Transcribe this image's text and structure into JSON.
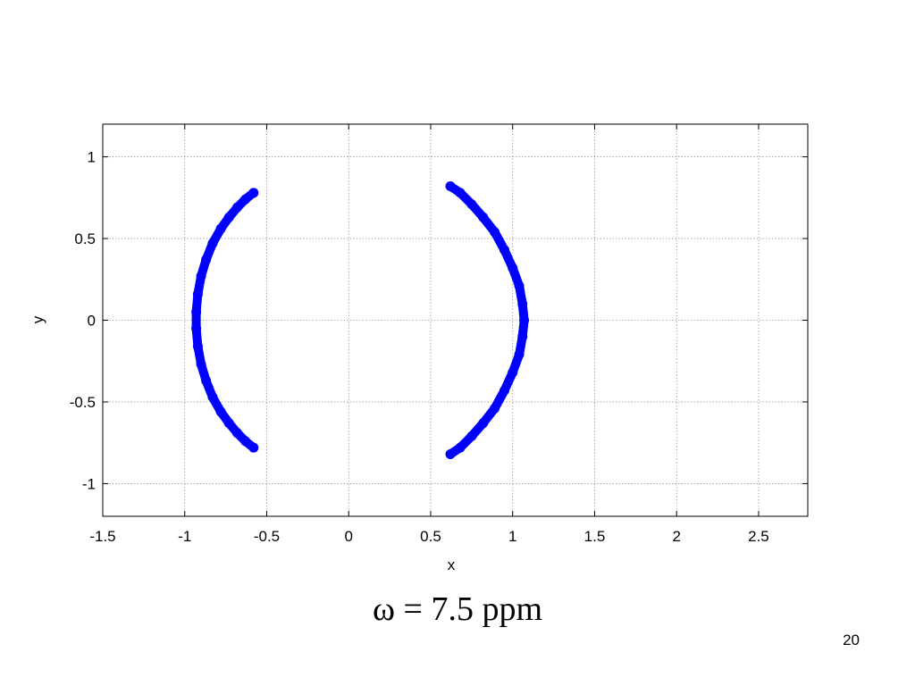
{
  "chart_data": {
    "type": "scatter",
    "title": "",
    "xlabel": "x",
    "ylabel": "y",
    "xlim": [
      -1.5,
      2.8
    ],
    "ylim": [
      -1.2,
      1.2
    ],
    "xticks": [
      -1.5,
      -1,
      -0.5,
      0,
      0.5,
      1,
      1.5,
      2,
      2.5
    ],
    "xtick_labels": [
      "-1.5",
      "-1",
      "-0.5",
      "0",
      "0.5",
      "1",
      "1.5",
      "2",
      "2.5"
    ],
    "yticks": [
      -1,
      -0.5,
      0,
      0.5,
      1
    ],
    "ytick_labels": [
      "-1",
      "-0.5",
      "0",
      "0.5",
      "1"
    ],
    "grid": true,
    "marker_color": "#0000ff",
    "series": [
      {
        "points": [
          [
            -0.58,
            0.78
          ],
          [
            -0.63,
            0.74
          ],
          [
            -0.68,
            0.69
          ],
          [
            -0.73,
            0.63
          ],
          [
            -0.78,
            0.56
          ],
          [
            -0.83,
            0.47
          ],
          [
            -0.87,
            0.37
          ],
          [
            -0.9,
            0.27
          ],
          [
            -0.92,
            0.16
          ],
          [
            -0.93,
            0.05
          ],
          [
            -0.93,
            -0.05
          ],
          [
            -0.92,
            -0.16
          ],
          [
            -0.9,
            -0.27
          ],
          [
            -0.87,
            -0.37
          ],
          [
            -0.83,
            -0.47
          ],
          [
            -0.78,
            -0.56
          ],
          [
            -0.73,
            -0.63
          ],
          [
            -0.68,
            -0.69
          ],
          [
            -0.63,
            -0.74
          ],
          [
            -0.58,
            -0.78
          ]
        ]
      },
      {
        "points": [
          [
            0.62,
            0.82
          ],
          [
            0.68,
            0.78
          ],
          [
            0.75,
            0.71
          ],
          [
            0.82,
            0.63
          ],
          [
            0.89,
            0.54
          ],
          [
            0.95,
            0.43
          ],
          [
            1.0,
            0.32
          ],
          [
            1.04,
            0.21
          ],
          [
            1.06,
            0.1
          ],
          [
            1.07,
            0.0
          ],
          [
            1.06,
            -0.1
          ],
          [
            1.04,
            -0.21
          ],
          [
            1.0,
            -0.32
          ],
          [
            0.95,
            -0.43
          ],
          [
            0.89,
            -0.54
          ],
          [
            0.82,
            -0.63
          ],
          [
            0.75,
            -0.71
          ],
          [
            0.68,
            -0.78
          ],
          [
            0.62,
            -0.82
          ]
        ]
      }
    ]
  },
  "caption": "ω = 7.5 ppm",
  "page_number": "20"
}
